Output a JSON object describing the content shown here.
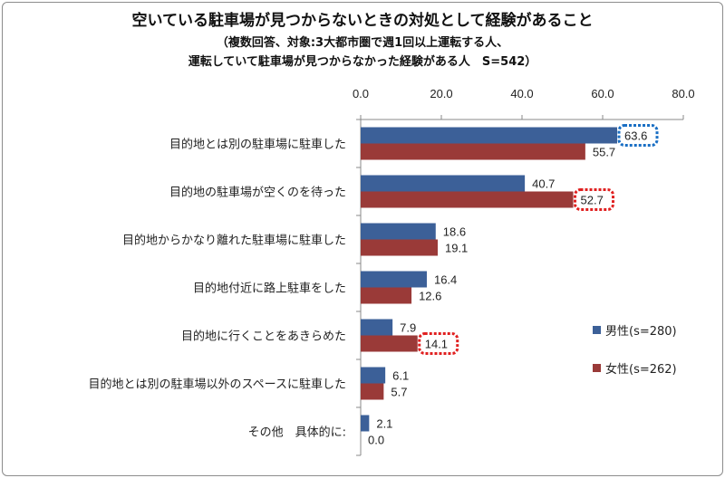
{
  "chart_title": {
    "line1": "空いている駐車場が見つからないときの対処として経験があること",
    "line2": "（複数回答、対象:3大都市圏で週1回以上運転する人、",
    "line3": "運転していて駐車場が見つからなかった経験がある人　S=542）"
  },
  "chart_data": {
    "type": "bar",
    "orientation": "horizontal",
    "title": "空いている駐車場が見つからないときの対処として経験があること",
    "subtitle": "（複数回答、対象:3大都市圏で週1回以上運転する人、運転していて駐車場が見つからなかった経験がある人　S=542）",
    "xlim": [
      0,
      80
    ],
    "tick_labels": [
      "0.0",
      "20.0",
      "40.0",
      "60.0",
      "80.0"
    ],
    "grid": false,
    "legend_position": "right",
    "categories": [
      "目的地とは別の駐車場に駐車した",
      "目的地の駐車場が空くのを待った",
      "目的地からかなり離れた駐車場に駐車した",
      "目的地付近に路上駐車をした",
      "目的地に行くことをあきらめた",
      "目的地とは別の駐車場以外のスペースに駐車した",
      "その他　具体的に:"
    ],
    "series": [
      {
        "name": "男性(s=280)",
        "color": "#3c6098",
        "values": [
          63.6,
          40.7,
          18.6,
          16.4,
          7.9,
          6.1,
          2.1
        ],
        "labels": [
          "63.6",
          "40.7",
          "18.6",
          "16.4",
          "7.9",
          "6.1",
          "2.1"
        ]
      },
      {
        "name": "女性(s=262)",
        "color": "#9a3a38",
        "values": [
          55.7,
          52.7,
          19.1,
          12.6,
          14.1,
          5.7,
          0.0
        ],
        "labels": [
          "55.7",
          "52.7",
          "19.1",
          "12.6",
          "14.1",
          "5.7",
          "0.0"
        ]
      }
    ],
    "highlights": [
      {
        "series": 0,
        "category": 0,
        "color": "#1a6fc4"
      },
      {
        "series": 1,
        "category": 1,
        "color": "#e02020"
      },
      {
        "series": 1,
        "category": 4,
        "color": "#e02020"
      }
    ]
  }
}
